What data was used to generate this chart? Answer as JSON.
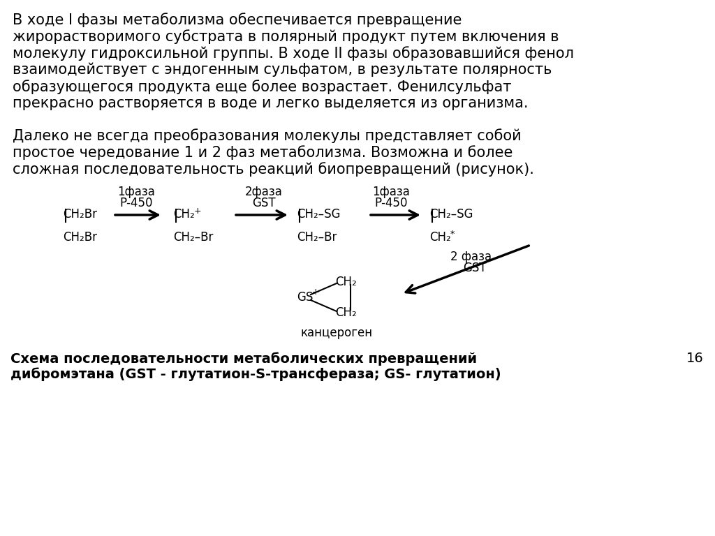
{
  "background_color": "#ffffff",
  "text_color": "#000000",
  "paragraph1_lines": [
    "В ходе I фазы метаболизма обеспечивается превращение",
    "жирорастворимого субстрата в полярный продукт путем включения в",
    "молекулу гидроксильной группы. В ходе II фазы образовавшийся фенол",
    "взаимодействует с эндогенным сульфатом, в результате полярность",
    "образующегося продукта еще более возрастает. Фенилсульфат",
    "прекрасно растворяется в воде и легко выделяется из организма."
  ],
  "paragraph2_lines": [
    "Далеко не всегда преобразования молекулы представляет собой",
    "простое чередование 1 и 2 фаз метаболизма. Возможна и более",
    "сложная последовательность реакций биопревращений (рисунок)."
  ],
  "caption_line1": "Схема последовательности метаболических превращений",
  "caption_line2": "дибромэтана (GST - глутатион-S-трансфераза; GS- глутатион)",
  "page_number": "16",
  "font_size_main": 15,
  "font_size_small": 12,
  "font_size_caption": 14
}
